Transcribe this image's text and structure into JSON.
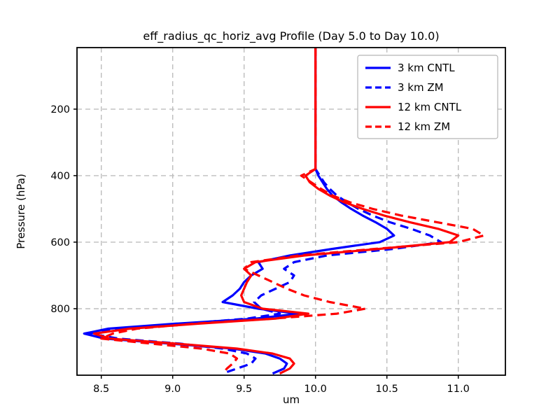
{
  "figure": {
    "title": "eff_radius_qc_horiz_avg Profile (Day 5.0 to Day 10.0)",
    "xlabel": "um",
    "ylabel": "Pressure (hPa)"
  },
  "chart_data": {
    "type": "line",
    "title": "eff_radius_qc_horiz_avg Profile (Day 5.0 to Day 10.0)",
    "xlabel": "um",
    "ylabel": "Pressure (hPa)",
    "xlim": [
      8.33,
      11.33
    ],
    "ylim_pressure": [
      15,
      1000
    ],
    "y_inverted": true,
    "grid": true,
    "grid_style": "dashed",
    "grid_color": "#bdbdbd",
    "xticks": [
      8.5,
      9.0,
      9.5,
      10.0,
      10.5,
      11.0
    ],
    "yticks": [
      200,
      400,
      600,
      800
    ],
    "legend": {
      "position": "upper right"
    },
    "pressure_levels": [
      15,
      50,
      100,
      150,
      200,
      250,
      300,
      350,
      380,
      400,
      420,
      440,
      460,
      480,
      500,
      520,
      540,
      560,
      580,
      600,
      620,
      640,
      660,
      680,
      700,
      720,
      740,
      760,
      780,
      800,
      815,
      830,
      845,
      860,
      875,
      890,
      905,
      920,
      935,
      950,
      965,
      980,
      995
    ],
    "series": [
      {
        "name": "3 km CNTL",
        "color": "#0000ff",
        "style": "solid",
        "values": [
          10.0,
          10.0,
          10.0,
          10.0,
          10.0,
          10.0,
          10.0,
          10.0,
          10.0,
          10.02,
          10.05,
          10.08,
          10.12,
          10.18,
          10.25,
          10.33,
          10.42,
          10.5,
          10.55,
          10.45,
          10.12,
          9.82,
          9.6,
          9.63,
          9.55,
          9.5,
          9.47,
          9.42,
          9.35,
          9.6,
          9.88,
          9.58,
          9.02,
          8.55,
          8.38,
          8.52,
          8.98,
          9.42,
          9.65,
          9.75,
          9.8,
          9.78,
          9.7
        ]
      },
      {
        "name": "3 km ZM",
        "color": "#0000ff",
        "style": "dashed",
        "values": [
          10.0,
          10.0,
          10.0,
          10.0,
          10.0,
          10.0,
          10.0,
          10.0,
          10.0,
          10.03,
          10.06,
          10.1,
          10.15,
          10.22,
          10.3,
          10.4,
          10.52,
          10.67,
          10.8,
          10.88,
          10.55,
          10.08,
          9.85,
          9.78,
          9.85,
          9.82,
          9.72,
          9.62,
          9.57,
          9.62,
          9.75,
          9.52,
          9.08,
          8.65,
          8.42,
          8.62,
          9.05,
          9.35,
          9.52,
          9.58,
          9.55,
          9.45,
          9.35
        ]
      },
      {
        "name": "12 km CNTL",
        "color": "#ff0000",
        "style": "solid",
        "values": [
          10.0,
          10.0,
          10.0,
          10.0,
          10.0,
          10.0,
          10.0,
          10.0,
          10.0,
          9.93,
          9.96,
          10.02,
          10.1,
          10.2,
          10.33,
          10.48,
          10.66,
          10.86,
          11.0,
          10.94,
          10.45,
          9.92,
          9.58,
          9.5,
          9.55,
          9.52,
          9.5,
          9.48,
          9.5,
          9.63,
          9.95,
          9.72,
          9.18,
          8.7,
          8.45,
          8.56,
          9.02,
          9.45,
          9.7,
          9.82,
          9.85,
          9.82,
          9.75
        ]
      },
      {
        "name": "12 km ZM",
        "color": "#ff0000",
        "style": "dashed",
        "values": [
          10.0,
          10.0,
          10.0,
          10.0,
          10.0,
          10.0,
          10.0,
          10.0,
          10.0,
          9.9,
          9.97,
          10.04,
          10.12,
          10.24,
          10.4,
          10.6,
          10.85,
          11.1,
          11.18,
          11.0,
          10.42,
          9.88,
          9.55,
          9.5,
          9.6,
          9.7,
          9.8,
          9.92,
          10.1,
          10.35,
          10.15,
          9.7,
          9.15,
          8.75,
          8.58,
          8.5,
          8.85,
          9.2,
          9.4,
          9.45,
          9.42,
          9.38,
          9.35
        ]
      }
    ]
  }
}
